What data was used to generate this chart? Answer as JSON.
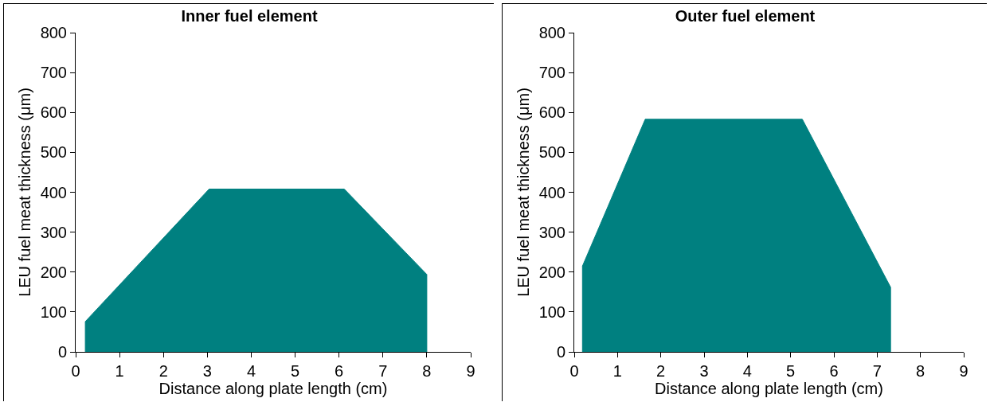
{
  "chart_data": [
    {
      "type": "area",
      "title": "Inner fuel element",
      "xlabel": "Distance along plate length (cm)",
      "ylabel": "LEU fuel meat thickness (μm)",
      "color": "#008080",
      "x": [
        0.22,
        0.22,
        3.04,
        6.12,
        8.0,
        8.0
      ],
      "values": [
        0,
        76,
        408,
        408,
        194,
        0
      ],
      "xlim": [
        0,
        9
      ],
      "ylim": [
        0,
        800
      ],
      "xticks": [
        0,
        1,
        2,
        3,
        4,
        5,
        6,
        7,
        8,
        9
      ],
      "yticks": [
        0,
        100,
        200,
        300,
        400,
        500,
        600,
        700,
        800
      ]
    },
    {
      "type": "area",
      "title": "Outer fuel element",
      "xlabel": "Distance along plate length (cm)",
      "ylabel": "LEU fuel meat thickness (μm)",
      "color": "#008080",
      "x": [
        0.19,
        0.19,
        1.64,
        5.27,
        7.31,
        7.31
      ],
      "values": [
        0,
        215,
        583,
        583,
        162,
        0
      ],
      "xlim": [
        0,
        9
      ],
      "ylim": [
        0,
        800
      ],
      "xticks": [
        0,
        1,
        2,
        3,
        4,
        5,
        6,
        7,
        8,
        9
      ],
      "yticks": [
        0,
        100,
        200,
        300,
        400,
        500,
        600,
        700,
        800
      ]
    }
  ]
}
